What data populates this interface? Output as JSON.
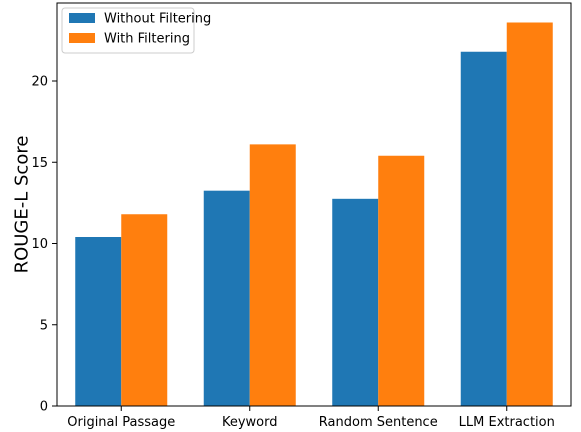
{
  "chart_data": {
    "type": "bar",
    "title": "",
    "xlabel": "",
    "ylabel": "ROUGE-L Score",
    "categories": [
      "Original Passage",
      "Keyword",
      "Random Sentence",
      "LLM Extraction"
    ],
    "series": [
      {
        "name": "Without Filtering",
        "color": "#1f77b4",
        "values": [
          10.4,
          13.25,
          12.75,
          21.8
        ]
      },
      {
        "name": "With Filtering",
        "color": "#ff7f0e",
        "values": [
          11.8,
          16.1,
          15.4,
          23.6
        ]
      }
    ],
    "ylim": [
      0,
      24.8
    ],
    "yticks": [
      0,
      5,
      10,
      15,
      20
    ],
    "legend_position": "top-left",
    "grid": false
  }
}
